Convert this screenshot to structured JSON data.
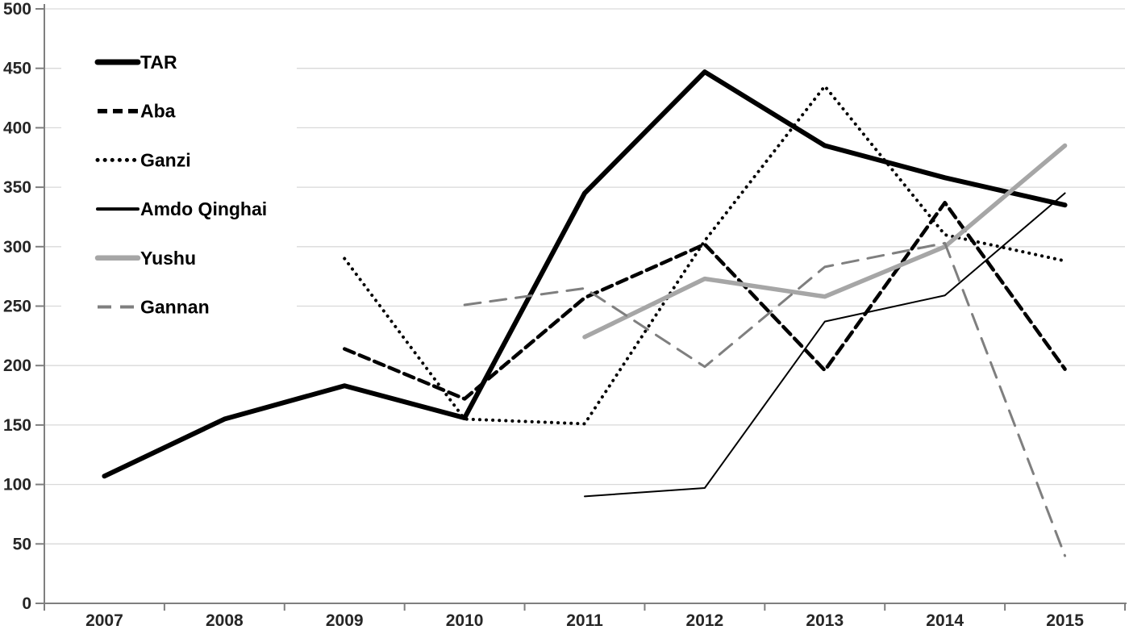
{
  "chart_data": {
    "type": "line",
    "title": "",
    "xlabel": "",
    "ylabel": "",
    "categories": [
      "2007",
      "2008",
      "2009",
      "2010",
      "2011",
      "2012",
      "2013",
      "2014",
      "2015"
    ],
    "ylim": [
      0,
      500
    ],
    "ytick_step": 50,
    "ytick_labels": [
      "0",
      "50",
      "100",
      "150",
      "200",
      "250",
      "300",
      "350",
      "400",
      "450",
      "500"
    ],
    "grid": true,
    "legend_position": "upper-left-inside",
    "series": [
      {
        "name": "TAR",
        "color": "#000000",
        "width": 6,
        "dash": "solid",
        "values": [
          107,
          155,
          183,
          156,
          345,
          447,
          385,
          358,
          335
        ]
      },
      {
        "name": "Aba",
        "color": "#000000",
        "width": 4.5,
        "dash": "dashed",
        "values": [
          null,
          null,
          214,
          172,
          257,
          302,
          196,
          337,
          197
        ]
      },
      {
        "name": "Ganzi",
        "color": "#000000",
        "width": 4,
        "dash": "dotted",
        "values": [
          null,
          null,
          290,
          155,
          151,
          305,
          435,
          310,
          288
        ]
      },
      {
        "name": "Amdo Qinghai",
        "color": "#000000",
        "width": 2,
        "dash": "solid",
        "values": [
          null,
          null,
          null,
          null,
          90,
          97,
          237,
          259,
          345
        ]
      },
      {
        "name": "Yushu",
        "color": "#a6a6a6",
        "width": 5.5,
        "dash": "solid",
        "values": [
          null,
          null,
          null,
          null,
          224,
          273,
          258,
          300,
          385
        ]
      },
      {
        "name": "Gannan",
        "color": "#7f7f7f",
        "width": 3,
        "dash": "longdash",
        "values": [
          null,
          null,
          null,
          251,
          265,
          199,
          283,
          303,
          40
        ]
      }
    ],
    "colors": {
      "background": "#ffffff",
      "gridline": "#d9d9d9",
      "axis": "#7f7f7f",
      "tick_label": "#262626",
      "legend_text": "#000000"
    }
  }
}
